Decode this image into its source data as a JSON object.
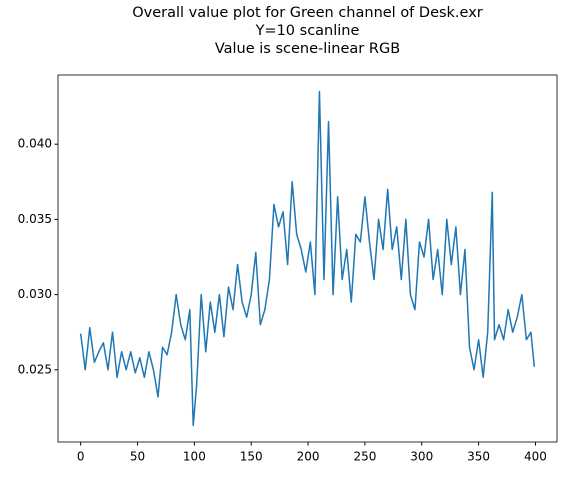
{
  "chart_data": {
    "type": "line",
    "title": [
      "Overall value plot for Green channel of Desk.exr",
      "Y=10 scanline",
      "Value is scene-linear RGB"
    ],
    "series": [
      {
        "name": "Green",
        "color": "#1f77b4",
        "x": [
          0,
          4,
          8,
          12,
          16,
          20,
          24,
          28,
          32,
          36,
          40,
          44,
          48,
          52,
          56,
          60,
          64,
          68,
          72,
          76,
          80,
          84,
          88,
          92,
          96,
          99,
          102,
          106,
          110,
          114,
          118,
          122,
          126,
          130,
          134,
          138,
          142,
          146,
          150,
          154,
          158,
          162,
          166,
          170,
          174,
          178,
          182,
          186,
          190,
          194,
          198,
          202,
          206,
          210,
          214,
          218,
          222,
          226,
          230,
          234,
          238,
          242,
          246,
          250,
          254,
          258,
          262,
          266,
          270,
          274,
          278,
          282,
          286,
          290,
          294,
          298,
          302,
          306,
          310,
          314,
          318,
          322,
          326,
          330,
          334,
          338,
          342,
          346,
          350,
          354,
          358,
          362,
          364,
          368,
          372,
          376,
          380,
          384,
          388,
          392,
          396,
          399
        ],
        "values": [
          0.0274,
          0.025,
          0.0278,
          0.0255,
          0.0262,
          0.0268,
          0.025,
          0.0275,
          0.0245,
          0.0262,
          0.025,
          0.0262,
          0.0248,
          0.0258,
          0.0245,
          0.0262,
          0.025,
          0.0232,
          0.0265,
          0.026,
          0.0275,
          0.03,
          0.028,
          0.027,
          0.029,
          0.0213,
          0.024,
          0.03,
          0.0262,
          0.0295,
          0.0275,
          0.03,
          0.0272,
          0.0305,
          0.029,
          0.032,
          0.0295,
          0.0285,
          0.03,
          0.0328,
          0.028,
          0.029,
          0.031,
          0.036,
          0.0345,
          0.0355,
          0.032,
          0.0375,
          0.034,
          0.033,
          0.0315,
          0.0335,
          0.03,
          0.0435,
          0.031,
          0.0415,
          0.03,
          0.0365,
          0.031,
          0.033,
          0.0295,
          0.034,
          0.0335,
          0.0365,
          0.0335,
          0.031,
          0.035,
          0.033,
          0.037,
          0.033,
          0.0345,
          0.031,
          0.035,
          0.03,
          0.029,
          0.0335,
          0.0325,
          0.035,
          0.031,
          0.033,
          0.03,
          0.035,
          0.032,
          0.0345,
          0.03,
          0.033,
          0.0265,
          0.025,
          0.027,
          0.0245,
          0.0275,
          0.0368,
          0.027,
          0.028,
          0.027,
          0.029,
          0.0275,
          0.0285,
          0.03,
          0.027,
          0.0275,
          0.0252
        ]
      }
    ],
    "xlim": [
      -19.95,
      418.95
    ],
    "xticks": [
      0,
      50,
      100,
      150,
      200,
      250,
      300,
      350,
      400
    ],
    "ylim": [
      0.0202,
      0.0446
    ],
    "yticks": [
      0.025,
      {
        "value": 0.03,
        "label": "0.030"
      },
      0.035,
      {
        "value": 0.04,
        "label": "0.040"
      }
    ]
  }
}
